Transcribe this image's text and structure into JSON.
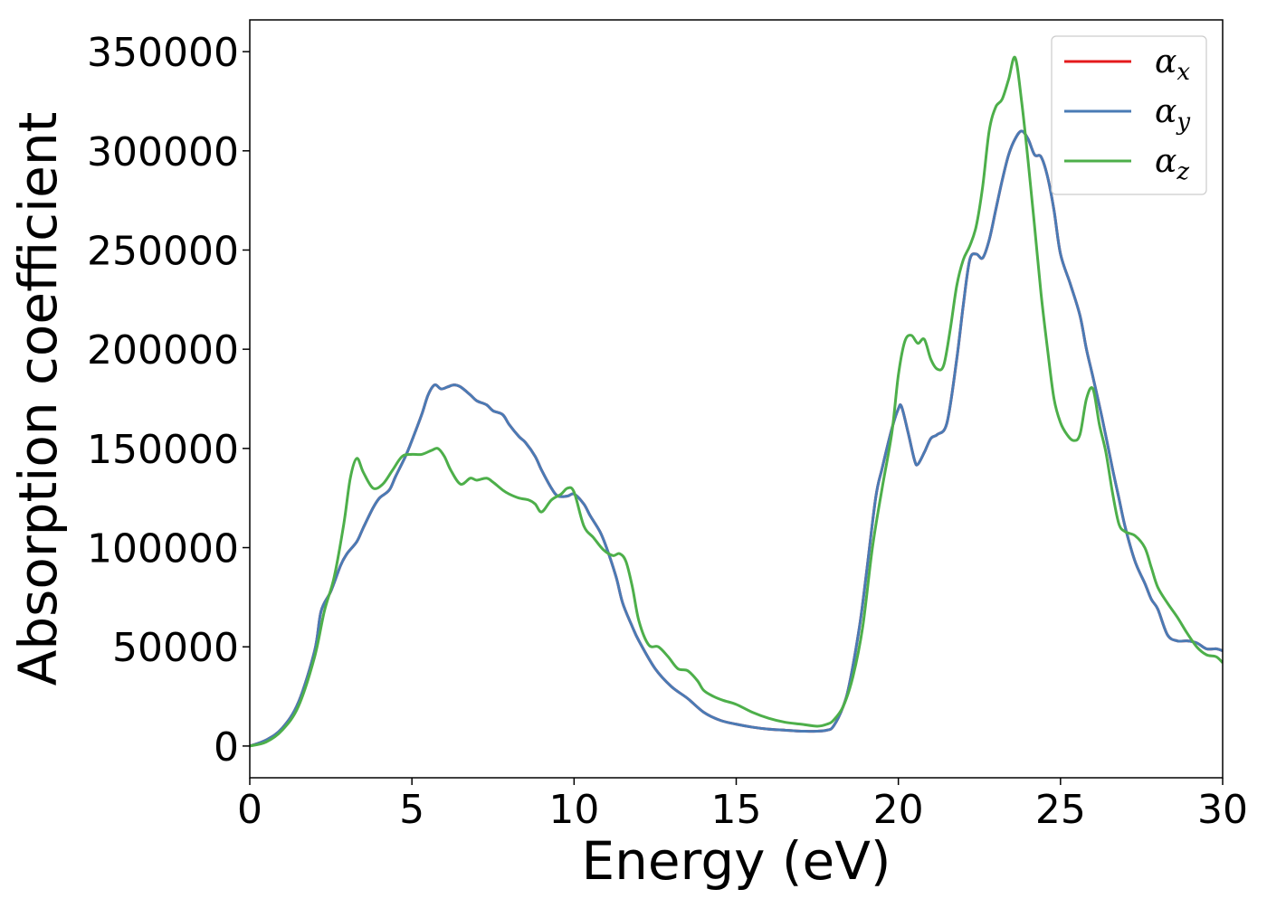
{
  "chart_data": {
    "type": "line",
    "xlabel": "Energy (eV)",
    "ylabel": "Absorption coefficient",
    "xlim": [
      0,
      30
    ],
    "ylim": [
      -16000,
      366000
    ],
    "xticks": [
      0,
      5,
      10,
      15,
      20,
      25,
      30
    ],
    "yticks": [
      0,
      50000,
      100000,
      150000,
      200000,
      250000,
      300000,
      350000
    ],
    "grid": false,
    "legend_position": "top-right",
    "series": [
      {
        "name": "α",
        "name_subscript": "x",
        "color": "#e41a1c",
        "x": [
          0,
          0.5,
          1.0,
          1.5,
          2.0,
          2.2,
          2.5,
          2.8,
          3.0,
          3.3,
          3.5,
          3.8,
          4.0,
          4.3,
          4.5,
          4.8,
          5.0,
          5.3,
          5.5,
          5.7,
          5.9,
          6.1,
          6.3,
          6.5,
          6.8,
          7.0,
          7.3,
          7.5,
          7.8,
          8.0,
          8.3,
          8.5,
          8.8,
          9.0,
          9.3,
          9.5,
          9.8,
          10.0,
          10.3,
          10.5,
          10.8,
          11.0,
          11.3,
          11.5,
          11.8,
          12.0,
          12.5,
          13.0,
          13.5,
          14.0,
          14.5,
          15.0,
          15.5,
          16.0,
          16.5,
          17.0,
          17.5,
          17.8,
          18.0,
          18.3,
          18.5,
          18.8,
          19.0,
          19.3,
          19.5,
          19.8,
          20.0,
          20.1,
          20.3,
          20.5,
          20.6,
          20.8,
          21.0,
          21.2,
          21.5,
          21.8,
          22.0,
          22.2,
          22.4,
          22.6,
          22.8,
          23.0,
          23.2,
          23.4,
          23.6,
          23.8,
          24.0,
          24.2,
          24.4,
          24.6,
          24.8,
          25.0,
          25.3,
          25.6,
          25.8,
          26.0,
          26.3,
          26.6,
          26.8,
          27.0,
          27.3,
          27.6,
          27.8,
          28.0,
          28.3,
          28.6,
          28.9,
          29.2,
          29.5,
          29.8,
          30.0
        ],
        "y": [
          0,
          3000,
          9000,
          22000,
          48000,
          68000,
          78000,
          91000,
          97000,
          103000,
          110000,
          120000,
          125000,
          129000,
          136000,
          146000,
          154000,
          167000,
          177000,
          182000,
          180000,
          181000,
          182000,
          181000,
          177000,
          174000,
          172000,
          169000,
          167000,
          162000,
          156000,
          153000,
          146000,
          139000,
          130000,
          126000,
          126000,
          127000,
          122000,
          116000,
          108000,
          100000,
          85000,
          72000,
          60000,
          53000,
          39000,
          30000,
          24000,
          17000,
          13000,
          11000,
          9500,
          8500,
          8000,
          7500,
          7500,
          8000,
          10000,
          20000,
          32000,
          60000,
          85000,
          125000,
          140000,
          160000,
          170000,
          171000,
          158000,
          144000,
          142000,
          148000,
          155000,
          157000,
          163000,
          195000,
          222000,
          245000,
          248000,
          246000,
          255000,
          270000,
          285000,
          298000,
          306000,
          310000,
          306000,
          298000,
          297000,
          287000,
          270000,
          248000,
          233000,
          217000,
          200000,
          186000,
          164000,
          140000,
          125000,
          110000,
          93000,
          82000,
          74000,
          69000,
          56000,
          53000,
          53000,
          52000,
          49000,
          49000,
          48000
        ]
      },
      {
        "name": "α",
        "name_subscript": "y",
        "color": "#4a7bb5",
        "x": [
          0,
          0.5,
          1.0,
          1.5,
          2.0,
          2.2,
          2.5,
          2.8,
          3.0,
          3.3,
          3.5,
          3.8,
          4.0,
          4.3,
          4.5,
          4.8,
          5.0,
          5.3,
          5.5,
          5.7,
          5.9,
          6.1,
          6.3,
          6.5,
          6.8,
          7.0,
          7.3,
          7.5,
          7.8,
          8.0,
          8.3,
          8.5,
          8.8,
          9.0,
          9.3,
          9.5,
          9.8,
          10.0,
          10.3,
          10.5,
          10.8,
          11.0,
          11.3,
          11.5,
          11.8,
          12.0,
          12.5,
          13.0,
          13.5,
          14.0,
          14.5,
          15.0,
          15.5,
          16.0,
          16.5,
          17.0,
          17.5,
          17.8,
          18.0,
          18.3,
          18.5,
          18.8,
          19.0,
          19.3,
          19.5,
          19.8,
          20.0,
          20.1,
          20.3,
          20.5,
          20.6,
          20.8,
          21.0,
          21.2,
          21.5,
          21.8,
          22.0,
          22.2,
          22.4,
          22.6,
          22.8,
          23.0,
          23.2,
          23.4,
          23.6,
          23.8,
          24.0,
          24.2,
          24.4,
          24.6,
          24.8,
          25.0,
          25.3,
          25.6,
          25.8,
          26.0,
          26.3,
          26.6,
          26.8,
          27.0,
          27.3,
          27.6,
          27.8,
          28.0,
          28.3,
          28.6,
          28.9,
          29.2,
          29.5,
          29.8,
          30.0
        ],
        "y": [
          0,
          3000,
          9000,
          22000,
          48000,
          68000,
          78000,
          91000,
          97000,
          103000,
          110000,
          120000,
          125000,
          129000,
          136000,
          146000,
          154000,
          167000,
          177000,
          182000,
          180000,
          181000,
          182000,
          181000,
          177000,
          174000,
          172000,
          169000,
          167000,
          162000,
          156000,
          153000,
          146000,
          139000,
          130000,
          126000,
          126000,
          127000,
          122000,
          116000,
          108000,
          100000,
          85000,
          72000,
          60000,
          53000,
          39000,
          30000,
          24000,
          17000,
          13000,
          11000,
          9500,
          8500,
          8000,
          7500,
          7500,
          8000,
          10000,
          20000,
          32000,
          60000,
          85000,
          125000,
          140000,
          160000,
          170000,
          171000,
          158000,
          144000,
          142000,
          148000,
          155000,
          157000,
          163000,
          195000,
          222000,
          245000,
          248000,
          246000,
          255000,
          270000,
          285000,
          298000,
          306000,
          310000,
          306000,
          298000,
          297000,
          287000,
          270000,
          248000,
          233000,
          217000,
          200000,
          186000,
          164000,
          140000,
          125000,
          110000,
          93000,
          82000,
          74000,
          69000,
          56000,
          53000,
          53000,
          52000,
          49000,
          49000,
          48000
        ]
      },
      {
        "name": "α",
        "name_subscript": "z",
        "color": "#4daf4a",
        "x": [
          0,
          0.5,
          1.0,
          1.5,
          2.0,
          2.3,
          2.6,
          2.9,
          3.1,
          3.3,
          3.5,
          3.8,
          4.1,
          4.4,
          4.7,
          5.0,
          5.3,
          5.6,
          5.8,
          6.0,
          6.2,
          6.5,
          6.8,
          7.0,
          7.3,
          7.5,
          7.8,
          8.0,
          8.3,
          8.6,
          8.8,
          9.0,
          9.3,
          9.6,
          9.8,
          10.0,
          10.3,
          10.6,
          10.9,
          11.2,
          11.4,
          11.6,
          11.8,
          12.0,
          12.3,
          12.6,
          12.9,
          13.2,
          13.5,
          13.8,
          14.0,
          14.3,
          14.6,
          15.0,
          15.5,
          16.0,
          16.5,
          17.0,
          17.5,
          17.8,
          18.0,
          18.3,
          18.6,
          18.9,
          19.2,
          19.5,
          19.8,
          20.0,
          20.2,
          20.4,
          20.6,
          20.8,
          21.0,
          21.2,
          21.4,
          21.6,
          21.8,
          22.0,
          22.2,
          22.4,
          22.6,
          22.8,
          23.0,
          23.2,
          23.4,
          23.6,
          23.8,
          24.0,
          24.2,
          24.4,
          24.6,
          24.8,
          25.0,
          25.2,
          25.4,
          25.6,
          25.8,
          26.0,
          26.2,
          26.4,
          26.6,
          26.8,
          27.0,
          27.3,
          27.6,
          27.8,
          28.0,
          28.3,
          28.6,
          28.9,
          29.2,
          29.5,
          29.8,
          30.0
        ],
        "y": [
          0,
          2000,
          8000,
          20000,
          45000,
          68000,
          85000,
          112000,
          135000,
          145000,
          138000,
          130000,
          132000,
          139000,
          146000,
          147000,
          147000,
          149000,
          150000,
          146000,
          139000,
          132000,
          135000,
          134000,
          135000,
          133000,
          129000,
          127000,
          125000,
          124000,
          122000,
          118000,
          124000,
          127000,
          130000,
          128000,
          111000,
          105000,
          99000,
          96000,
          97000,
          93000,
          80000,
          63000,
          51000,
          50000,
          45000,
          39000,
          38000,
          33000,
          28000,
          25000,
          23000,
          21000,
          17000,
          14000,
          12000,
          11000,
          10000,
          11000,
          13000,
          20000,
          35000,
          60000,
          100000,
          130000,
          158000,
          187000,
          204000,
          207000,
          203000,
          205000,
          195000,
          190000,
          192000,
          210000,
          232000,
          245000,
          252000,
          262000,
          282000,
          310000,
          322000,
          326000,
          336000,
          347000,
          325000,
          295000,
          262000,
          228000,
          200000,
          175000,
          163000,
          157000,
          154000,
          157000,
          175000,
          180000,
          162000,
          148000,
          128000,
          112000,
          108000,
          106000,
          100000,
          90000,
          80000,
          72000,
          65000,
          57000,
          50000,
          46000,
          45000,
          42000
        ]
      }
    ]
  }
}
